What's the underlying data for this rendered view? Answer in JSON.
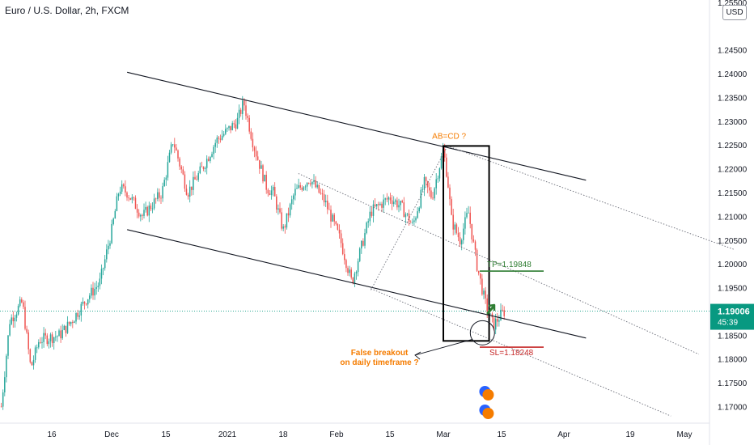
{
  "header": {
    "title": "Euro / U.S. Dollar, 2h, FXCM",
    "currency": "USD"
  },
  "price_tag": {
    "price": "1.19006",
    "countdown": "45:39",
    "color": "#089981"
  },
  "colors": {
    "up": "#26a69a",
    "down": "#ef5350",
    "orange": "#f57c00",
    "green": "#2e7d32",
    "red": "#c62828",
    "dotted_price": "#089981",
    "icon_blue": "#2962ff",
    "icon_orange": "#f57c00"
  },
  "chart_data": {
    "type": "candlestick",
    "title": "Euro / U.S. Dollar, 2h, FXCM",
    "y_ticks": [
      "1.25500",
      "1.24500",
      "1.24000",
      "1.23500",
      "1.23000",
      "1.22500",
      "1.22000",
      "1.21500",
      "1.21000",
      "1.20500",
      "1.20000",
      "1.19500",
      "1.18500",
      "1.18000",
      "1.17500",
      "1.17000"
    ],
    "y_tick_values": [
      1.255,
      1.245,
      1.24,
      1.235,
      1.23,
      1.225,
      1.22,
      1.215,
      1.21,
      1.205,
      1.2,
      1.195,
      1.185,
      1.18,
      1.175,
      1.17
    ],
    "x_ticks": [
      "16",
      "Dec",
      "15",
      "2021",
      "18",
      "Feb",
      "15",
      "Mar",
      "15",
      "Apr",
      "19",
      "May"
    ],
    "x_tick_dates": [
      "2020-11-16",
      "2020-12-01",
      "2020-12-15",
      "2021-01-01",
      "2021-01-18",
      "2021-02-01",
      "2021-02-15",
      "2021-03-01",
      "2021-03-15",
      "2021-04-01",
      "2021-04-19",
      "2021-05-01"
    ],
    "ylim": [
      1.1665,
      1.2555
    ],
    "price_path": [
      [
        "2020-11-04",
        1.17
      ],
      [
        "2020-11-06",
        1.188
      ],
      [
        "2020-11-09",
        1.192
      ],
      [
        "2020-11-11",
        1.178
      ],
      [
        "2020-11-13",
        1.184
      ],
      [
        "2020-11-18",
        1.185
      ],
      [
        "2020-11-21",
        1.188
      ],
      [
        "2020-11-25",
        1.193
      ],
      [
        "2020-11-28",
        1.196
      ],
      [
        "2020-12-01",
        1.207
      ],
      [
        "2020-12-03",
        1.216
      ],
      [
        "2020-12-05",
        1.215
      ],
      [
        "2020-12-09",
        1.21
      ],
      [
        "2020-12-14",
        1.215
      ],
      [
        "2020-12-17",
        1.226
      ],
      [
        "2020-12-21",
        1.215
      ],
      [
        "2020-12-25",
        1.22
      ],
      [
        "2020-12-29",
        1.226
      ],
      [
        "2021-01-01",
        1.228
      ],
      [
        "2021-01-04",
        1.23
      ],
      [
        "2021-01-06",
        1.234
      ],
      [
        "2021-01-09",
        1.225
      ],
      [
        "2021-01-13",
        1.216
      ],
      [
        "2021-01-15",
        1.215
      ],
      [
        "2021-01-18",
        1.207
      ],
      [
        "2021-01-21",
        1.215
      ],
      [
        "2021-01-25",
        1.218
      ],
      [
        "2021-01-29",
        1.213
      ],
      [
        "2021-02-02",
        1.205
      ],
      [
        "2021-02-05",
        1.196
      ],
      [
        "2021-02-10",
        1.211
      ],
      [
        "2021-02-15",
        1.214
      ],
      [
        "2021-02-18",
        1.212
      ],
      [
        "2021-02-21",
        1.208
      ],
      [
        "2021-02-24",
        1.217
      ],
      [
        "2021-02-26",
        1.214
      ],
      [
        "2021-03-01",
        1.224
      ],
      [
        "2021-03-02",
        1.218
      ],
      [
        "2021-03-03",
        1.209
      ],
      [
        "2021-03-05",
        1.205
      ],
      [
        "2021-03-07",
        1.211
      ],
      [
        "2021-03-09",
        1.2
      ],
      [
        "2021-03-11",
        1.192
      ],
      [
        "2021-03-13",
        1.187
      ],
      [
        "2021-03-15",
        1.1895
      ],
      [
        "2021-03-16",
        1.1901
      ]
    ],
    "trend_lines": [
      {
        "from": [
          "2020-12-05",
          1.2403
        ],
        "to": [
          "2021-04-07",
          1.2176
        ]
      },
      {
        "from": [
          "2020-12-05",
          1.2072
        ],
        "to": [
          "2021-04-07",
          1.1844
        ]
      }
    ],
    "dotted_lines": [
      {
        "from": [
          "2021-02-10",
          1.1945
        ],
        "to": [
          "2021-03-02",
          1.2248
        ]
      },
      {
        "from": [
          "2021-03-02",
          1.2248
        ],
        "to": [
          "2021-05-15",
          1.203
        ]
      },
      {
        "from": [
          "2021-01-22",
          1.219
        ],
        "to": [
          "2021-05-05",
          1.181
        ]
      },
      {
        "from": [
          "2021-02-10",
          1.1948
        ],
        "to": [
          "2021-04-28",
          1.168
        ]
      }
    ],
    "rectangle": {
      "from": [
        "2021-03-01",
        1.2248
      ],
      "to": [
        "2021-03-12",
        1.1838
      ]
    },
    "annotations": {
      "abcd": "AB=CD ?",
      "tp": "TP=1.19848",
      "tp_value": 1.19848,
      "sl": "SL=1.18248",
      "sl_value": 1.18248,
      "false_breakout_line1": "False breakout",
      "false_breakout_line2": "on daily timeframe ?",
      "current_price": 1.19006
    },
    "grid": false
  }
}
